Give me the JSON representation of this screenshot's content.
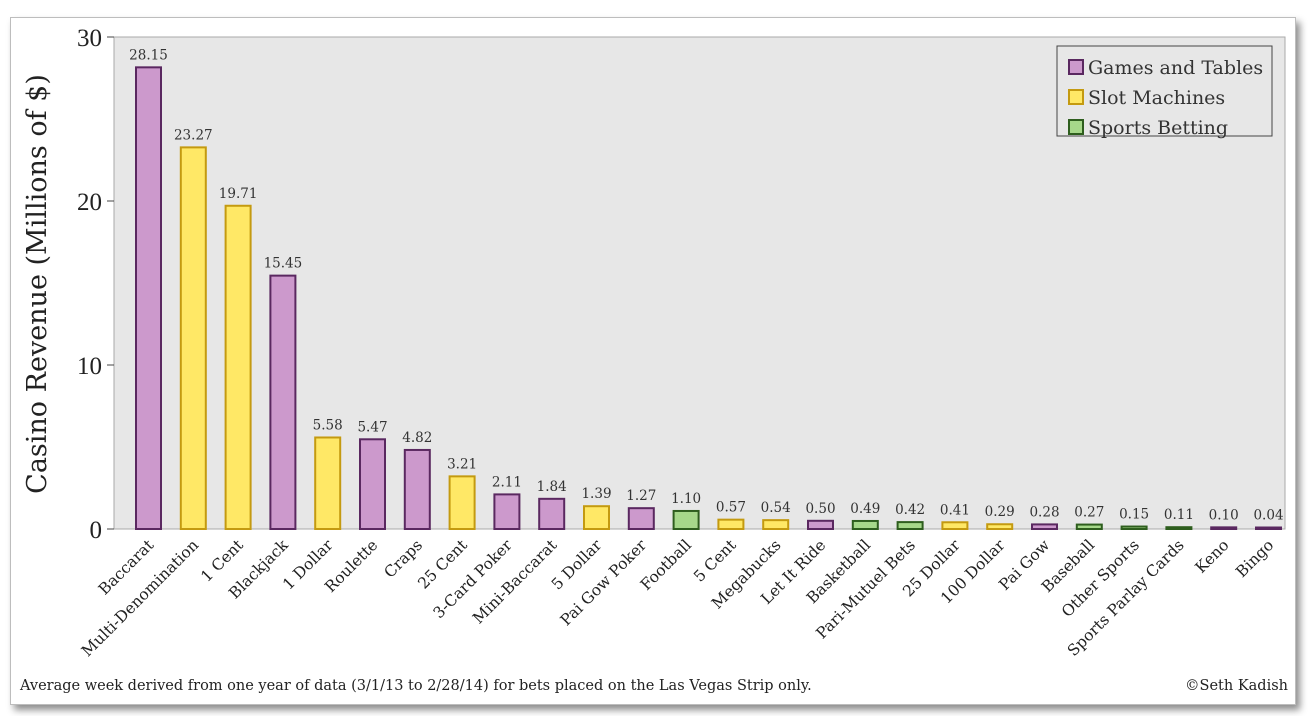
{
  "chart_data": {
    "type": "bar",
    "title": "",
    "xlabel": "",
    "ylabel": "Casino Revenue (Millions of $)",
    "ylim": [
      0,
      30
    ],
    "yticks": [
      0,
      10,
      20,
      30
    ],
    "grid": false,
    "legend_position": "top-right",
    "groups": [
      {
        "name": "Games and Tables",
        "fill": "#cc99cc",
        "stroke": "#5a2860"
      },
      {
        "name": "Slot Machines",
        "fill": "#ffe866",
        "stroke": "#c49a10"
      },
      {
        "name": "Sports Betting",
        "fill": "#a6d88a",
        "stroke": "#2e5e1e"
      }
    ],
    "bars": [
      {
        "category": "Baccarat",
        "value": 28.15,
        "label": "28.15",
        "group": 0
      },
      {
        "category": "Multi-Denomination",
        "value": 23.27,
        "label": "23.27",
        "group": 1
      },
      {
        "category": "1 Cent",
        "value": 19.71,
        "label": "19.71",
        "group": 1
      },
      {
        "category": "Blackjack",
        "value": 15.45,
        "label": "15.45",
        "group": 0
      },
      {
        "category": "1 Dollar",
        "value": 5.58,
        "label": "5.58",
        "group": 1
      },
      {
        "category": "Roulette",
        "value": 5.47,
        "label": "5.47",
        "group": 0
      },
      {
        "category": "Craps",
        "value": 4.82,
        "label": "4.82",
        "group": 0
      },
      {
        "category": "25 Cent",
        "value": 3.21,
        "label": "3.21",
        "group": 1
      },
      {
        "category": "3-Card Poker",
        "value": 2.11,
        "label": "2.11",
        "group": 0
      },
      {
        "category": "Mini-Baccarat",
        "value": 1.84,
        "label": "1.84",
        "group": 0
      },
      {
        "category": "5 Dollar",
        "value": 1.39,
        "label": "1.39",
        "group": 1
      },
      {
        "category": "Pai Gow Poker",
        "value": 1.27,
        "label": "1.27",
        "group": 0
      },
      {
        "category": "Football",
        "value": 1.1,
        "label": "1.10",
        "group": 2
      },
      {
        "category": "5 Cent",
        "value": 0.57,
        "label": "0.57",
        "group": 1
      },
      {
        "category": "Megabucks",
        "value": 0.54,
        "label": "0.54",
        "group": 1
      },
      {
        "category": "Let It Ride",
        "value": 0.5,
        "label": "0.50",
        "group": 0
      },
      {
        "category": "Basketball",
        "value": 0.49,
        "label": "0.49",
        "group": 2
      },
      {
        "category": "Pari-Mutuel Bets",
        "value": 0.42,
        "label": "0.42",
        "group": 2
      },
      {
        "category": "25 Dollar",
        "value": 0.41,
        "label": "0.41",
        "group": 1
      },
      {
        "category": "100 Dollar",
        "value": 0.29,
        "label": "0.29",
        "group": 1
      },
      {
        "category": "Pai Gow",
        "value": 0.28,
        "label": "0.28",
        "group": 0
      },
      {
        "category": "Baseball",
        "value": 0.27,
        "label": "0.27",
        "group": 2
      },
      {
        "category": "Other Sports",
        "value": 0.15,
        "label": "0.15",
        "group": 2
      },
      {
        "category": "Sports Parlay Cards",
        "value": 0.11,
        "label": "0.11",
        "group": 2
      },
      {
        "category": "Keno",
        "value": 0.1,
        "label": "0.10",
        "group": 0
      },
      {
        "category": "Bingo",
        "value": 0.04,
        "label": "0.04",
        "group": 0
      }
    ]
  },
  "footer": {
    "note": "Average week derived from one year of data (3/1/13 to 2/28/14) for bets placed on the Las Vegas Strip only.",
    "credit": "©Seth Kadish"
  }
}
